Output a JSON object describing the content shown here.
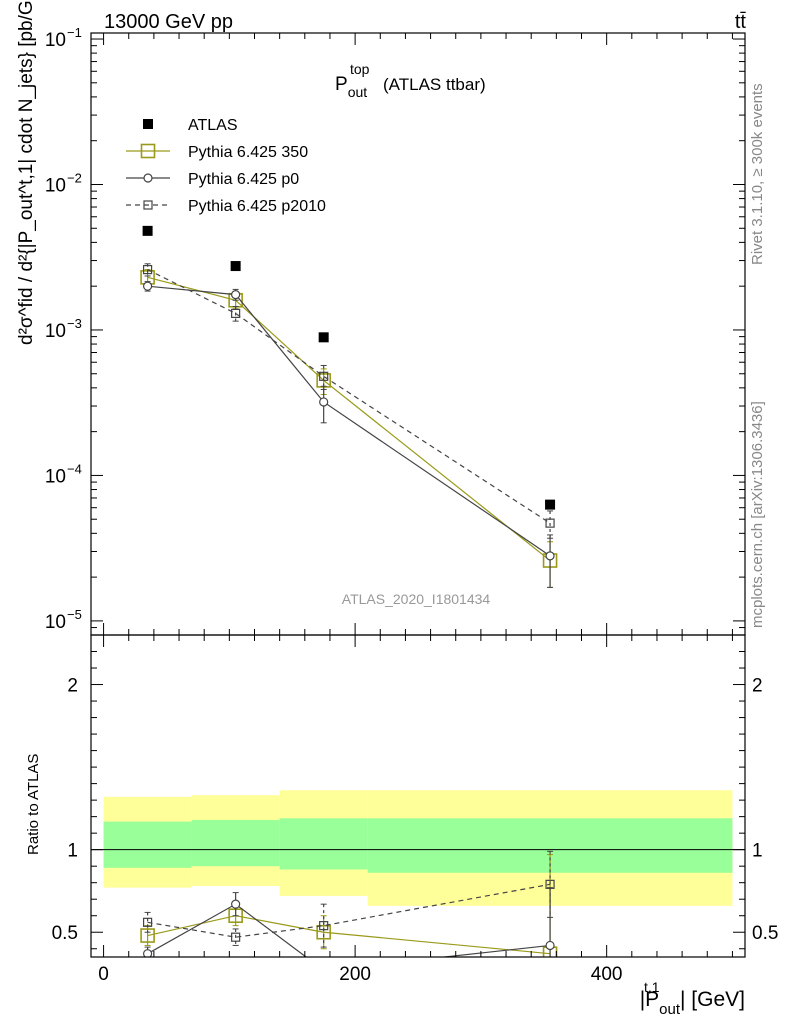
{
  "header": {
    "left": "13000 GeV pp",
    "right": "tt̄"
  },
  "side_labels": {
    "rivet": "Rivet 3.1.10, ≥ 300k events",
    "mcplots": "mcplots.cern.ch [arXiv:1306.3436]"
  },
  "title": {
    "main": "P",
    "sup": "top",
    "sub": "out",
    "suffix": "(ATLAS ttbar)"
  },
  "watermark": "ATLAS_2020_I1801434",
  "axes": {
    "y_label": "d²σ^fid / d²{|P_out^t,1| cdot N_jets} [pb/GeV]",
    "ratio_label": "Ratio to ATLAS",
    "x_label_main": "|P",
    "x_label_sup": "t,1",
    "x_label_sub": "out",
    "x_label_suffix": "| [GeV]"
  },
  "chart_data": [
    {
      "type": "scatter",
      "panel": "main",
      "yscale": "log",
      "xlim": [
        -10,
        510
      ],
      "ylim": [
        8e-06,
        0.11
      ],
      "x_ticks": [
        0,
        200,
        400
      ],
      "y_ticks": [
        {
          "value": 1e-05,
          "label": "10",
          "exp": "−5"
        },
        {
          "value": 0.0001,
          "label": "10",
          "exp": "−4"
        },
        {
          "value": 0.001,
          "label": "10",
          "exp": "−3"
        },
        {
          "value": 0.01,
          "label": "10",
          "exp": "−2"
        },
        {
          "value": 0.1,
          "label": "10",
          "exp": "−1"
        }
      ],
      "legend_position": "top-left",
      "x": [
        35,
        105,
        175,
        355
      ],
      "series": [
        {
          "name": "ATLAS",
          "style": "filled-square",
          "color": "#000000",
          "values": [
            0.0048,
            0.00275,
            0.00089,
            6.3e-05
          ]
        },
        {
          "name": "Pythia 6.425 350",
          "style": "open-square-solid",
          "color": "#9a9a1a",
          "values": [
            0.0023,
            0.0016,
            0.00045,
            2.6e-05
          ],
          "err": [
            0.0003,
            0.0002,
            9e-05,
            9e-06
          ]
        },
        {
          "name": "Pythia 6.425 p0",
          "style": "open-circle-solid",
          "color": "#444444",
          "values": [
            0.002,
            0.00175,
            0.00032,
            2.8e-05
          ],
          "err": [
            0.00015,
            0.00015,
            9e-05,
            1.1e-05
          ]
        },
        {
          "name": "Pythia 6.425 p2010",
          "style": "open-square-dashed",
          "color": "#444444",
          "values": [
            0.0026,
            0.0013,
            0.00048,
            4.7e-05
          ],
          "err": [
            0.00025,
            0.00015,
            9e-05,
            1e-05
          ]
        }
      ]
    },
    {
      "type": "line",
      "panel": "ratio",
      "xlim": [
        -10,
        510
      ],
      "ylim": [
        0.35,
        2.3
      ],
      "x_ticks": [
        0,
        200,
        400
      ],
      "y_ticks": [
        0.5,
        1,
        2
      ],
      "bands": [
        {
          "x0": 0,
          "x1": 70,
          "inner": [
            0.89,
            1.17
          ],
          "outer": [
            0.77,
            1.32
          ]
        },
        {
          "x0": 70,
          "x1": 140,
          "inner": [
            0.9,
            1.18
          ],
          "outer": [
            0.78,
            1.33
          ]
        },
        {
          "x0": 140,
          "x1": 210,
          "inner": [
            0.88,
            1.19
          ],
          "outer": [
            0.72,
            1.36
          ]
        },
        {
          "x0": 210,
          "x1": 500,
          "inner": [
            0.86,
            1.19
          ],
          "outer": [
            0.66,
            1.36
          ]
        }
      ],
      "band_colors": {
        "inner": "#99ff99",
        "outer": "#ffff99"
      },
      "x": [
        35,
        105,
        175,
        355
      ],
      "series": [
        {
          "name": "Pythia 6.425 350",
          "style": "open-square-solid",
          "color": "#9a9a1a",
          "values": [
            0.48,
            0.6,
            0.5,
            0.37
          ],
          "err": [
            0.06,
            0.06,
            0.1,
            0.6
          ]
        },
        {
          "name": "Pythia 6.425 p0",
          "style": "open-circle-solid",
          "color": "#444444",
          "values": [
            0.37,
            0.67,
            0.27,
            0.42
          ],
          "err": [
            0.04,
            0.07,
            0.08,
            0.35
          ]
        },
        {
          "name": "Pythia 6.425 p2010",
          "style": "open-square-dashed",
          "color": "#444444",
          "values": [
            0.56,
            0.47,
            0.54,
            0.79
          ],
          "err": [
            0.06,
            0.05,
            0.13,
            0.2
          ]
        }
      ]
    }
  ]
}
